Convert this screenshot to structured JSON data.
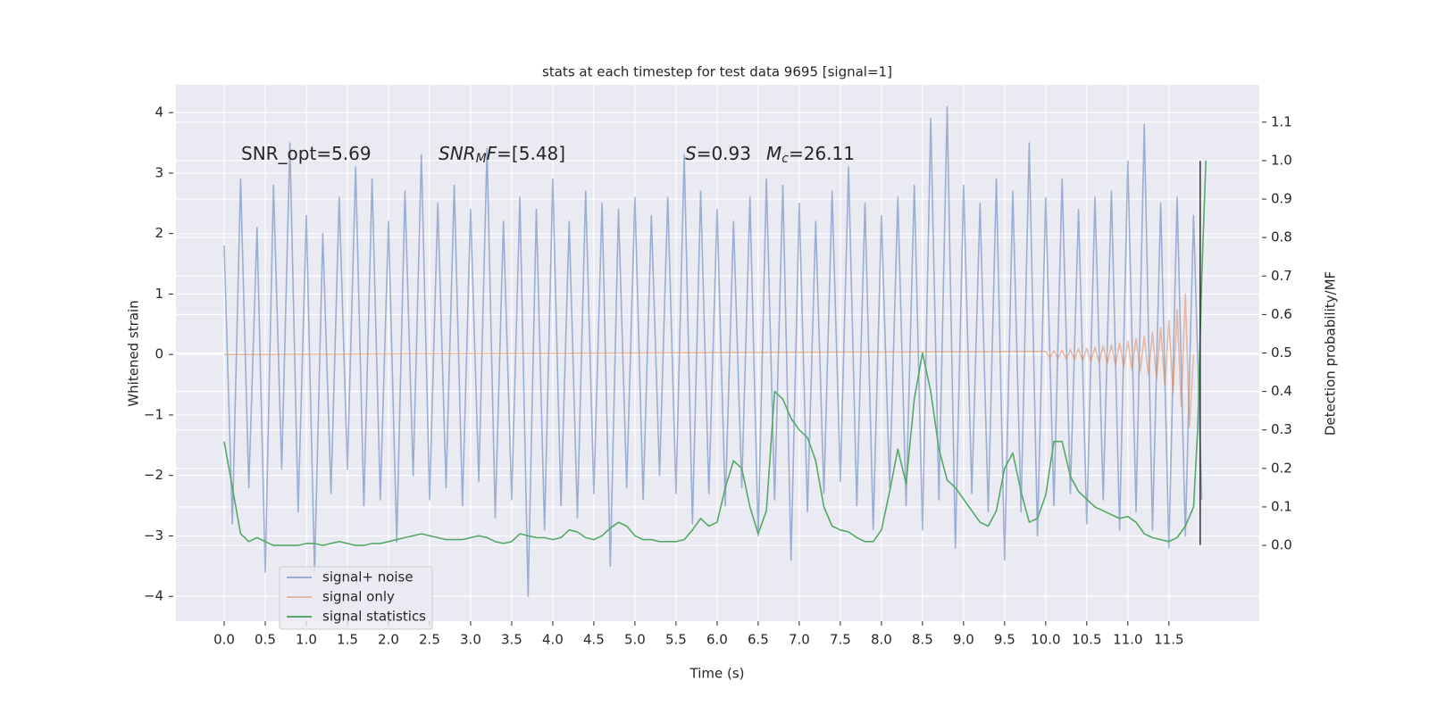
{
  "chart_data": {
    "type": "line",
    "title": "stats at each timestep for test data 9695 [signal=1]",
    "xlabel": "Time (s)",
    "ylabel": "Whitened strain",
    "y2label": "Detection probability/MF",
    "xlim": [
      -0.587,
      12.6
    ],
    "ylim": [
      -4.41,
      4.46
    ],
    "y2lim": [
      -0.197,
      1.197
    ],
    "xticks": [
      {
        "value": 0,
        "label": "0.0"
      },
      0.5,
      {
        "value": 1,
        "label": "1.0"
      },
      1.5,
      {
        "value": 2,
        "label": "2.0"
      },
      2.5,
      {
        "value": 3,
        "label": "3.0"
      },
      3.5,
      {
        "value": 4,
        "label": "4.0"
      },
      4.5,
      {
        "value": 5,
        "label": "5.0"
      },
      5.5,
      {
        "value": 6,
        "label": "6.0"
      },
      6.5,
      {
        "value": 7,
        "label": "7.0"
      },
      7.5,
      {
        "value": 8,
        "label": "8.0"
      },
      8.5,
      {
        "value": 9,
        "label": "9.0"
      },
      9.5,
      {
        "value": 10,
        "label": "10.0"
      },
      10.5,
      {
        "value": 11,
        "label": "11.0"
      },
      11.5
    ],
    "yticks": [
      {
        "value": -4,
        "label": "−4"
      },
      {
        "value": -3,
        "label": "−3"
      },
      {
        "value": -2,
        "label": "−2"
      },
      {
        "value": -1,
        "label": "−1"
      },
      0,
      1,
      2,
      3,
      4
    ],
    "y2ticks": [
      {
        "value": 0,
        "label": "0.0"
      },
      0.1,
      0.2,
      0.3,
      0.4,
      0.5,
      0.6,
      0.7,
      0.8,
      0.9,
      {
        "value": 1,
        "label": "1.0"
      },
      1.1
    ],
    "grid": true,
    "legend": "lower left",
    "series": [
      {
        "name": "signal+ noise",
        "color": "#4c72b0",
        "alpha": 0.5,
        "x": [
          0,
          0.1,
          0.2,
          0.3,
          0.4,
          0.5,
          0.6,
          0.7,
          0.8,
          0.9,
          1,
          1.1,
          1.2,
          1.3,
          1.4,
          1.5,
          1.6,
          1.7,
          1.8,
          1.9,
          2,
          2.1,
          2.2,
          2.3,
          2.4,
          2.5,
          2.6,
          2.7,
          2.8,
          2.9,
          3,
          3.1,
          3.2,
          3.3,
          3.4,
          3.5,
          3.6,
          3.7,
          3.8,
          3.9,
          4,
          4.1,
          4.2,
          4.3,
          4.4,
          4.5,
          4.6,
          4.7,
          4.8,
          4.9,
          5,
          5.1,
          5.2,
          5.3,
          5.4,
          5.5,
          5.6,
          5.7,
          5.8,
          5.9,
          6,
          6.1,
          6.2,
          6.3,
          6.4,
          6.5,
          6.6,
          6.7,
          6.8,
          6.9,
          7,
          7.1,
          7.2,
          7.3,
          7.4,
          7.5,
          7.6,
          7.7,
          7.8,
          7.9,
          8,
          8.1,
          8.2,
          8.3,
          8.4,
          8.5,
          8.6,
          8.7,
          8.8,
          8.9,
          9,
          9.1,
          9.2,
          9.3,
          9.4,
          9.5,
          9.6,
          9.7,
          9.8,
          9.9,
          10,
          10.1,
          10.2,
          10.3,
          10.4,
          10.5,
          10.6,
          10.7,
          10.8,
          10.9,
          11,
          11.1,
          11.2,
          11.3,
          11.4,
          11.5,
          11.6,
          11.7,
          11.8,
          11.9
        ],
        "values": [
          1.8,
          -2.8,
          2.9,
          -2.2,
          2.1,
          -3.6,
          2.8,
          -1.9,
          3.5,
          -2.6,
          2.3,
          -3.6,
          2.0,
          -2.3,
          2.6,
          -1.9,
          3.1,
          -2.5,
          2.9,
          -2.4,
          2.2,
          -3.1,
          2.7,
          -2.0,
          3.3,
          -2.4,
          2.5,
          -2.2,
          2.8,
          -2.5,
          2.4,
          -2.1,
          3.4,
          -2.7,
          2.2,
          -2.4,
          2.6,
          -4.0,
          2.4,
          -2.9,
          2.9,
          -2.5,
          2.2,
          -2.7,
          2.7,
          -2.3,
          2.5,
          -3.5,
          2.4,
          -2.2,
          2.6,
          -2.4,
          2.3,
          -2.0,
          2.6,
          -2.3,
          3.3,
          -2.8,
          2.7,
          -2.3,
          2.4,
          -2.5,
          2.2,
          -2.2,
          2.6,
          -3.0,
          2.9,
          -2.4,
          2.8,
          -3.4,
          2.5,
          -2.6,
          2.2,
          -2.3,
          2.7,
          -2.1,
          3.1,
          -2.5,
          2.5,
          -2.9,
          2.3,
          -2.2,
          2.6,
          -2.5,
          2.8,
          -2.9,
          3.9,
          -2.4,
          4.1,
          -3.2,
          2.8,
          -2.3,
          2.5,
          -2.6,
          2.9,
          -3.4,
          2.7,
          -2.6,
          3.5,
          -3.0,
          2.6,
          -2.5,
          2.9,
          -2.3,
          2.4,
          -2.8,
          2.6,
          -2.4,
          2.7,
          -2.9,
          3.2,
          -2.6,
          3.8,
          -2.9,
          2.5,
          -3.2,
          2.6,
          -3.0,
          2.3,
          -2.4
        ]
      },
      {
        "name": "signal only",
        "color": "#dd8452",
        "alpha": 0.5,
        "x": [
          0,
          10,
          10.05,
          10.1,
          10.15,
          10.2,
          10.25,
          10.3,
          10.35,
          10.4,
          10.45,
          10.5,
          10.55,
          10.6,
          10.65,
          10.7,
          10.75,
          10.8,
          10.85,
          10.9,
          10.95,
          11,
          11.05,
          11.1,
          11.15,
          11.2,
          11.25,
          11.3,
          11.35,
          11.4,
          11.45,
          11.5,
          11.55,
          11.6,
          11.65,
          11.7,
          11.75,
          11.8
        ],
        "values": [
          0,
          0.05,
          -0.05,
          0.06,
          -0.06,
          0.07,
          -0.07,
          0.08,
          -0.08,
          0.09,
          -0.1,
          0.1,
          -0.11,
          0.12,
          -0.13,
          0.14,
          -0.15,
          0.16,
          -0.17,
          0.19,
          -0.2,
          0.22,
          -0.24,
          0.26,
          -0.28,
          0.3,
          -0.33,
          0.36,
          -0.4,
          0.44,
          -0.5,
          0.56,
          -0.64,
          0.74,
          -0.86,
          1.0,
          -1.2,
          0
        ]
      },
      {
        "name": "signal statistics",
        "color": "#55a868",
        "alpha": 1,
        "axis": "y2",
        "x": [
          0,
          0.1,
          0.2,
          0.3,
          0.4,
          0.5,
          0.6,
          0.7,
          0.8,
          0.9,
          1,
          1.1,
          1.2,
          1.3,
          1.4,
          1.5,
          1.6,
          1.7,
          1.8,
          1.9,
          2,
          2.1,
          2.2,
          2.3,
          2.4,
          2.5,
          2.6,
          2.7,
          2.8,
          2.9,
          3,
          3.1,
          3.2,
          3.3,
          3.4,
          3.5,
          3.6,
          3.7,
          3.8,
          3.9,
          4,
          4.1,
          4.2,
          4.3,
          4.4,
          4.5,
          4.6,
          4.7,
          4.8,
          4.9,
          5,
          5.1,
          5.2,
          5.3,
          5.4,
          5.5,
          5.6,
          5.7,
          5.8,
          5.9,
          6,
          6.1,
          6.2,
          6.3,
          6.4,
          6.5,
          6.6,
          6.7,
          6.8,
          6.9,
          7,
          7.1,
          7.2,
          7.3,
          7.4,
          7.5,
          7.6,
          7.7,
          7.8,
          7.9,
          8,
          8.1,
          8.2,
          8.3,
          8.4,
          8.5,
          8.6,
          8.7,
          8.8,
          8.9,
          9,
          9.1,
          9.2,
          9.3,
          9.4,
          9.5,
          9.6,
          9.7,
          9.8,
          9.9,
          10,
          10.1,
          10.2,
          10.3,
          10.4,
          10.5,
          10.6,
          10.7,
          10.8,
          10.9,
          11,
          11.1,
          11.2,
          11.3,
          11.4,
          11.5,
          11.6,
          11.7,
          11.8,
          11.85,
          11.9,
          11.95
        ],
        "values": [
          0.27,
          0.15,
          0.03,
          0.01,
          0.02,
          0.01,
          0,
          0,
          0,
          0,
          0.005,
          0.005,
          0,
          0.005,
          0.01,
          0.005,
          0,
          0,
          0.005,
          0.005,
          0.01,
          0.015,
          0.02,
          0.025,
          0.03,
          0.025,
          0.02,
          0.015,
          0.015,
          0.015,
          0.02,
          0.025,
          0.02,
          0.01,
          0.005,
          0.01,
          0.03,
          0.025,
          0.02,
          0.02,
          0.015,
          0.02,
          0.04,
          0.035,
          0.02,
          0.015,
          0.025,
          0.045,
          0.06,
          0.05,
          0.025,
          0.015,
          0.015,
          0.01,
          0.01,
          0.01,
          0.015,
          0.04,
          0.07,
          0.05,
          0.06,
          0.15,
          0.22,
          0.2,
          0.1,
          0.03,
          0.09,
          0.4,
          0.38,
          0.33,
          0.3,
          0.28,
          0.22,
          0.1,
          0.05,
          0.04,
          0.035,
          0.02,
          0.01,
          0.01,
          0.04,
          0.14,
          0.25,
          0.16,
          0.38,
          0.5,
          0.4,
          0.25,
          0.17,
          0.15,
          0.12,
          0.09,
          0.06,
          0.05,
          0.09,
          0.2,
          0.24,
          0.14,
          0.06,
          0.07,
          0.13,
          0.27,
          0.27,
          0.18,
          0.14,
          0.12,
          0.1,
          0.09,
          0.08,
          0.07,
          0.075,
          0.06,
          0.03,
          0.02,
          0.015,
          0.01,
          0.02,
          0.05,
          0.1,
          0.3,
          0.7,
          1.0
        ]
      }
    ],
    "vline": {
      "x": 11.88,
      "ymin": -3.15,
      "ymax": 3.2,
      "color": "#333333"
    },
    "annotations": [
      {
        "parts": [
          {
            "text": "SNR_opt=5.69"
          }
        ]
      },
      {
        "parts": [
          {
            "text": "SNR",
            "style": "italic"
          },
          {
            "text": "M",
            "style": "italic-sub"
          },
          {
            "text": "F",
            "style": "italic"
          },
          {
            "text": "=[5.48]"
          }
        ]
      },
      {
        "parts": [
          {
            "text": "S",
            "style": "italic"
          },
          {
            "text": "=0.93"
          }
        ]
      },
      {
        "parts": [
          {
            "text": "M",
            "style": "italic"
          },
          {
            "text": "c",
            "style": "italic-sub"
          },
          {
            "text": "=26.11"
          }
        ]
      }
    ]
  }
}
